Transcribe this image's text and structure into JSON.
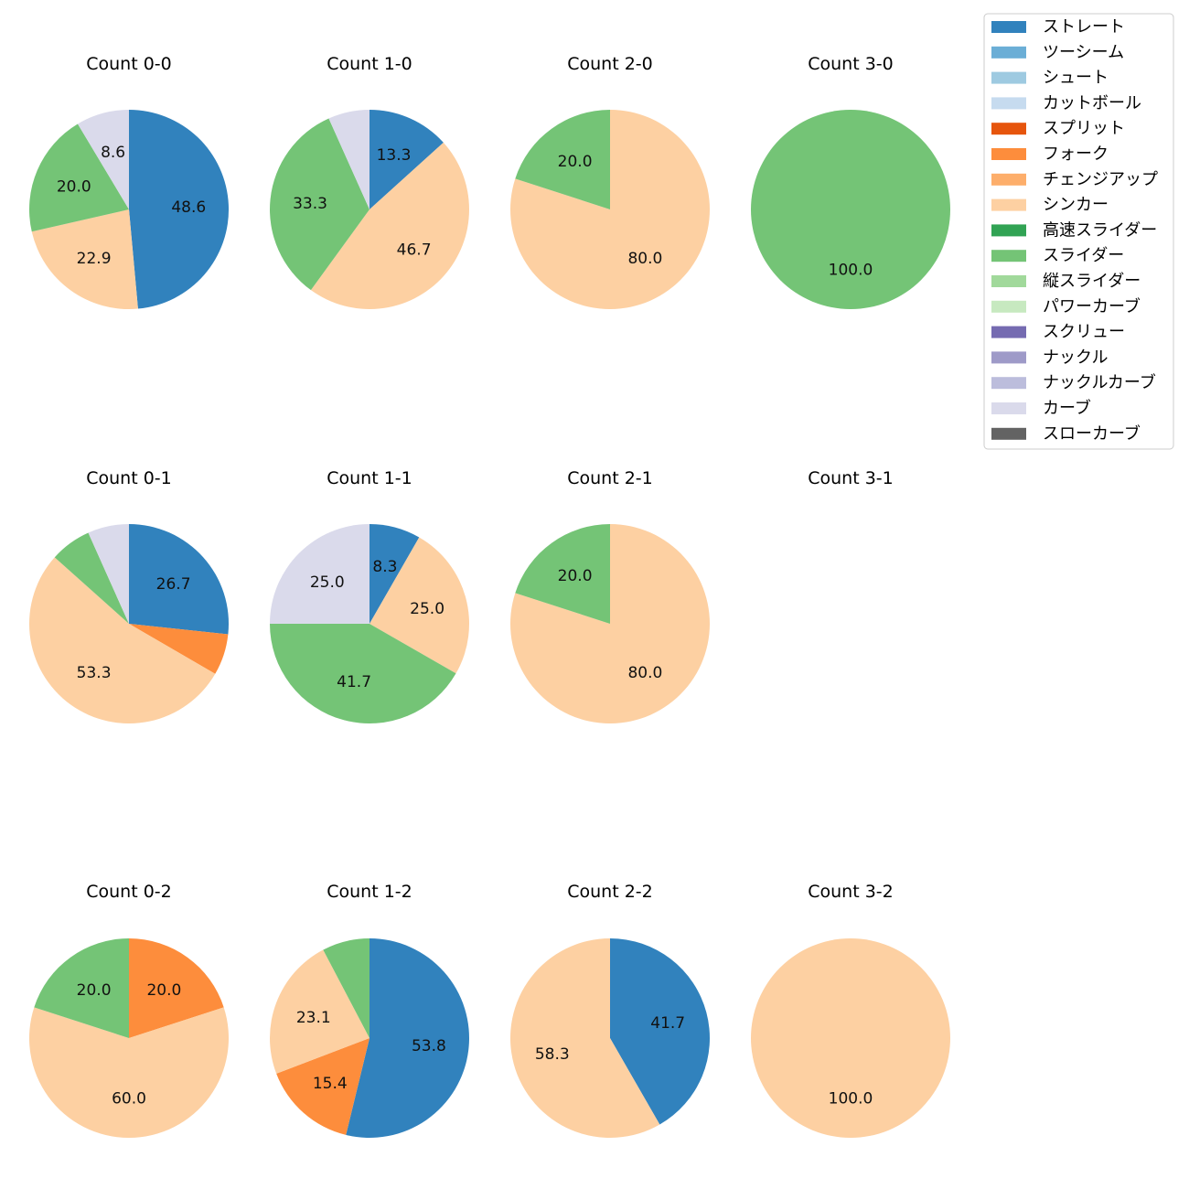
{
  "legend": [
    {
      "label": "ストレート",
      "color": "#3182bd"
    },
    {
      "label": "ツーシーム",
      "color": "#6baed6"
    },
    {
      "label": "シュート",
      "color": "#9ecae1"
    },
    {
      "label": "カットボール",
      "color": "#c6dbef"
    },
    {
      "label": "スプリット",
      "color": "#e6550d"
    },
    {
      "label": "フォーク",
      "color": "#fd8d3c"
    },
    {
      "label": "チェンジアップ",
      "color": "#fdae6b"
    },
    {
      "label": "シンカー",
      "color": "#fdd0a2"
    },
    {
      "label": "高速スライダー",
      "color": "#31a354"
    },
    {
      "label": "スライダー",
      "color": "#74c476"
    },
    {
      "label": "縦スライダー",
      "color": "#a1d99b"
    },
    {
      "label": "パワーカーブ",
      "color": "#c7e9c0"
    },
    {
      "label": "スクリュー",
      "color": "#756bb1"
    },
    {
      "label": "ナックル",
      "color": "#9e9ac8"
    },
    {
      "label": "ナックルカーブ",
      "color": "#bcbddc"
    },
    {
      "label": "カーブ",
      "color": "#dadaeb"
    },
    {
      "label": "スローカーブ",
      "color": "#636363"
    }
  ],
  "chart_data": [
    {
      "type": "pie",
      "title": "Count 0-0",
      "slices": [
        {
          "pitch": "ストレート",
          "value": 48.6,
          "label": "48.6"
        },
        {
          "pitch": "シンカー",
          "value": 22.9,
          "label": "22.9"
        },
        {
          "pitch": "スライダー",
          "value": 20.0,
          "label": "20.0"
        },
        {
          "pitch": "カーブ",
          "value": 8.6,
          "label": "8.6"
        }
      ]
    },
    {
      "type": "pie",
      "title": "Count 1-0",
      "slices": [
        {
          "pitch": "ストレート",
          "value": 13.3,
          "label": "13.3"
        },
        {
          "pitch": "シンカー",
          "value": 46.7,
          "label": "46.7"
        },
        {
          "pitch": "スライダー",
          "value": 33.3,
          "label": "33.3"
        },
        {
          "pitch": "カーブ",
          "value": 6.7,
          "label": ""
        }
      ]
    },
    {
      "type": "pie",
      "title": "Count 2-0",
      "slices": [
        {
          "pitch": "シンカー",
          "value": 80.0,
          "label": "80.0"
        },
        {
          "pitch": "スライダー",
          "value": 20.0,
          "label": "20.0"
        }
      ]
    },
    {
      "type": "pie",
      "title": "Count 3-0",
      "slices": [
        {
          "pitch": "スライダー",
          "value": 100.0,
          "label": "100.0"
        }
      ]
    },
    {
      "type": "pie",
      "title": "Count 0-1",
      "slices": [
        {
          "pitch": "ストレート",
          "value": 26.7,
          "label": "26.7"
        },
        {
          "pitch": "フォーク",
          "value": 6.7,
          "label": ""
        },
        {
          "pitch": "シンカー",
          "value": 53.3,
          "label": "53.3"
        },
        {
          "pitch": "スライダー",
          "value": 6.7,
          "label": ""
        },
        {
          "pitch": "カーブ",
          "value": 6.7,
          "label": ""
        }
      ]
    },
    {
      "type": "pie",
      "title": "Count 1-1",
      "slices": [
        {
          "pitch": "ストレート",
          "value": 8.3,
          "label": "8.3"
        },
        {
          "pitch": "シンカー",
          "value": 25.0,
          "label": "25.0"
        },
        {
          "pitch": "スライダー",
          "value": 41.7,
          "label": "41.7"
        },
        {
          "pitch": "カーブ",
          "value": 25.0,
          "label": "25.0"
        }
      ]
    },
    {
      "type": "pie",
      "title": "Count 2-1",
      "slices": [
        {
          "pitch": "シンカー",
          "value": 80.0,
          "label": "80.0"
        },
        {
          "pitch": "スライダー",
          "value": 20.0,
          "label": "20.0"
        }
      ]
    },
    {
      "type": "pie",
      "title": "Count 3-1",
      "slices": []
    },
    {
      "type": "pie",
      "title": "Count 0-2",
      "slices": [
        {
          "pitch": "フォーク",
          "value": 20.0,
          "label": "20.0"
        },
        {
          "pitch": "シンカー",
          "value": 60.0,
          "label": "60.0"
        },
        {
          "pitch": "スライダー",
          "value": 20.0,
          "label": "20.0"
        }
      ]
    },
    {
      "type": "pie",
      "title": "Count 1-2",
      "slices": [
        {
          "pitch": "ストレート",
          "value": 53.8,
          "label": "53.8"
        },
        {
          "pitch": "フォーク",
          "value": 15.4,
          "label": "15.4"
        },
        {
          "pitch": "シンカー",
          "value": 23.1,
          "label": "23.1"
        },
        {
          "pitch": "スライダー",
          "value": 7.7,
          "label": ""
        }
      ]
    },
    {
      "type": "pie",
      "title": "Count 2-2",
      "slices": [
        {
          "pitch": "ストレート",
          "value": 41.7,
          "label": "41.7"
        },
        {
          "pitch": "シンカー",
          "value": 58.3,
          "label": "58.3"
        }
      ]
    },
    {
      "type": "pie",
      "title": "Count 3-2",
      "slices": [
        {
          "pitch": "シンカー",
          "value": 100.0,
          "label": "100.0"
        }
      ]
    }
  ]
}
